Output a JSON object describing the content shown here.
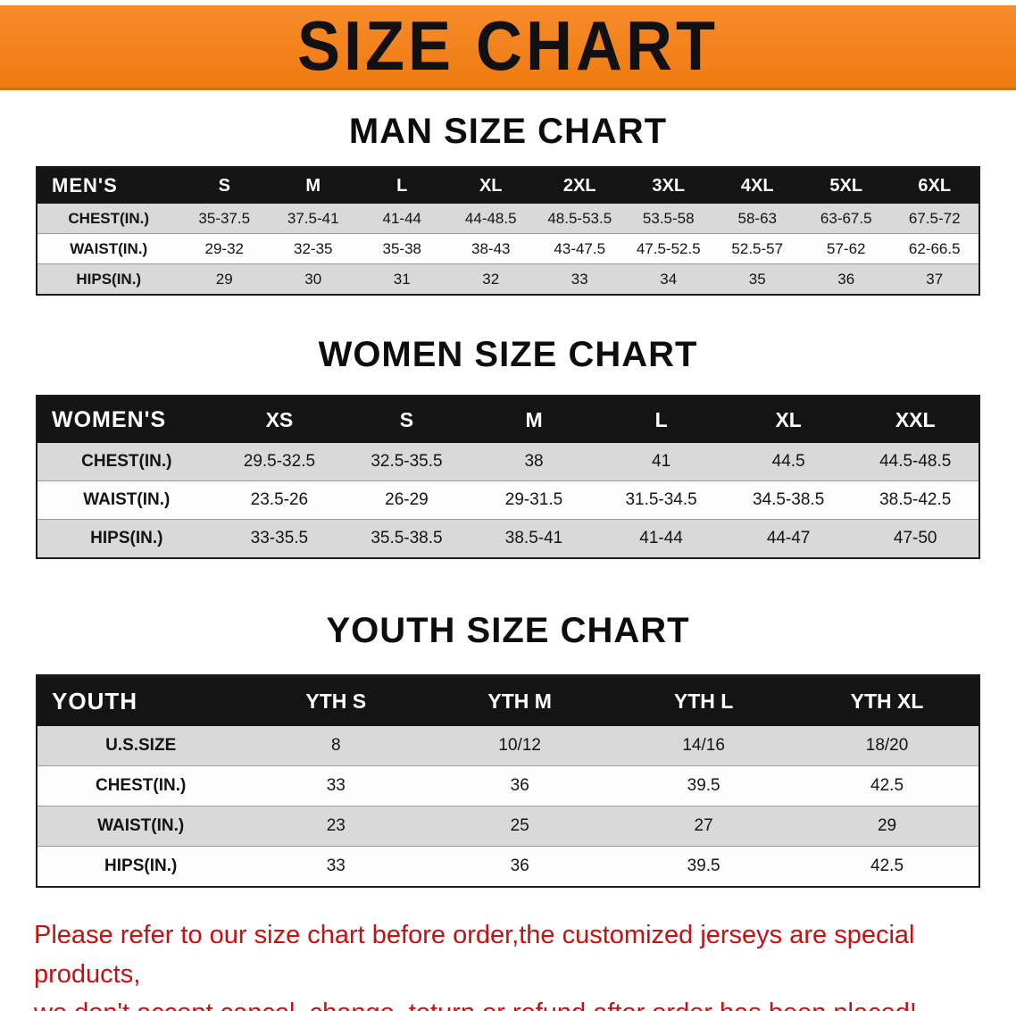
{
  "banner": {
    "title": "SIZE CHART"
  },
  "sections": [
    {
      "heading": "MAN SIZE CHART",
      "table": {
        "header": [
          "MEN'S",
          "S",
          "M",
          "L",
          "XL",
          "2XL",
          "3XL",
          "4XL",
          "5XL",
          "6XL"
        ],
        "rows": [
          {
            "label": "CHEST(IN.)",
            "values": [
              "35-37.5",
              "37.5-41",
              "41-44",
              "44-48.5",
              "48.5-53.5",
              "53.5-58",
              "58-63",
              "63-67.5",
              "67.5-72"
            ]
          },
          {
            "label": "WAIST(IN.)",
            "values": [
              "29-32",
              "32-35",
              "35-38",
              "38-43",
              "43-47.5",
              "47.5-52.5",
              "52.5-57",
              "57-62",
              "62-66.5"
            ]
          },
          {
            "label": "HIPS(IN.)",
            "values": [
              "29",
              "30",
              "31",
              "32",
              "33",
              "34",
              "35",
              "36",
              "37"
            ]
          }
        ]
      }
    },
    {
      "heading": "WOMEN SIZE CHART",
      "table": {
        "header": [
          "WOMEN'S",
          "XS",
          "S",
          "M",
          "L",
          "XL",
          "XXL"
        ],
        "rows": [
          {
            "label": "CHEST(IN.)",
            "values": [
              "29.5-32.5",
              "32.5-35.5",
              "38",
              "41",
              "44.5",
              "44.5-48.5"
            ]
          },
          {
            "label": "WAIST(IN.)",
            "values": [
              "23.5-26",
              "26-29",
              "29-31.5",
              "31.5-34.5",
              "34.5-38.5",
              "38.5-42.5"
            ]
          },
          {
            "label": "HIPS(IN.)",
            "values": [
              "33-35.5",
              "35.5-38.5",
              "38.5-41",
              "41-44",
              "44-47",
              "47-50"
            ]
          }
        ]
      }
    },
    {
      "heading": "YOUTH SIZE CHART",
      "table": {
        "header": [
          "YOUTH",
          "YTH S",
          "YTH M",
          "YTH L",
          "YTH XL"
        ],
        "rows": [
          {
            "label": "U.S.SIZE",
            "values": [
              "8",
              "10/12",
              "14/16",
              "18/20"
            ]
          },
          {
            "label": "CHEST(IN.)",
            "values": [
              "33",
              "36",
              "39.5",
              "42.5"
            ]
          },
          {
            "label": "WAIST(IN.)",
            "values": [
              "23",
              "25",
              "27",
              "29"
            ]
          },
          {
            "label": "HIPS(IN.)",
            "values": [
              "33",
              "36",
              "39.5",
              "42.5"
            ]
          }
        ]
      }
    }
  ],
  "disclaimer": {
    "line1": "Please refer to our size chart before order,the customized jerseys are special products,",
    "line2": "we don't accept cancel, change, teturn or refund after order has been placed!"
  },
  "colors": {
    "banner_bg": "#ee7b11",
    "header_bg": "#141414",
    "stripe": "#d9d9d9",
    "disclaimer_red": "#c51111"
  }
}
